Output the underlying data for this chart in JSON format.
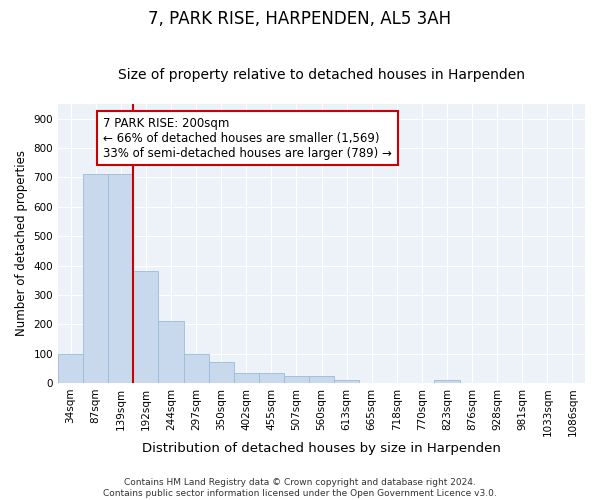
{
  "title": "7, PARK RISE, HARPENDEN, AL5 3AH",
  "subtitle": "Size of property relative to detached houses in Harpenden",
  "xlabel": "Distribution of detached houses by size in Harpenden",
  "ylabel": "Number of detached properties",
  "categories": [
    "34sqm",
    "87sqm",
    "139sqm",
    "192sqm",
    "244sqm",
    "297sqm",
    "350sqm",
    "402sqm",
    "455sqm",
    "507sqm",
    "560sqm",
    "613sqm",
    "665sqm",
    "718sqm",
    "770sqm",
    "823sqm",
    "876sqm",
    "928sqm",
    "981sqm",
    "1033sqm",
    "1086sqm"
  ],
  "values": [
    100,
    710,
    713,
    380,
    210,
    100,
    70,
    35,
    35,
    25,
    25,
    10,
    0,
    0,
    0,
    10,
    0,
    0,
    0,
    0,
    0
  ],
  "bar_color": "#c8d9ee",
  "bar_edge_color": "#9bbcd9",
  "vline_x_index": 3,
  "vline_color": "#cc0000",
  "annotation_text": "7 PARK RISE: 200sqm\n← 66% of detached houses are smaller (1,569)\n33% of semi-detached houses are larger (789) →",
  "annotation_box_color": "#ffffff",
  "annotation_box_edge": "#cc0000",
  "ylim": [
    0,
    950
  ],
  "yticks": [
    0,
    100,
    200,
    300,
    400,
    500,
    600,
    700,
    800,
    900
  ],
  "background_color": "#edf2f9",
  "footer_text": "Contains HM Land Registry data © Crown copyright and database right 2024.\nContains public sector information licensed under the Open Government Licence v3.0.",
  "title_fontsize": 12,
  "subtitle_fontsize": 10,
  "xlabel_fontsize": 9.5,
  "ylabel_fontsize": 8.5,
  "tick_fontsize": 7.5,
  "annotation_fontsize": 8.5,
  "footer_fontsize": 6.5
}
